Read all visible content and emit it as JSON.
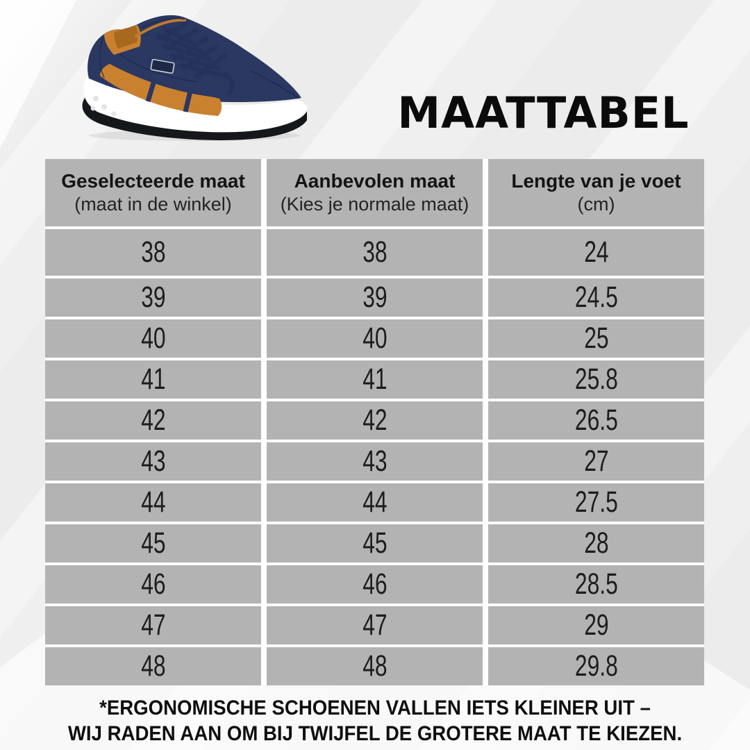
{
  "title": "MAATTABEL",
  "shoe": {
    "navy": "#2a3862",
    "navy_dark": "#1d2948",
    "orange": "#c9812f",
    "orange_dark": "#a8681f",
    "sole": "#ffffff",
    "outsole": "#16171b",
    "lace": "#25335c"
  },
  "table": {
    "headers": [
      {
        "title": "Geselecteerde maat",
        "subtitle": "(maat in de winkel)"
      },
      {
        "title": "Aanbevolen maat",
        "subtitle": "(Kies je normale maat)"
      },
      {
        "title": "Lengte van je voet",
        "subtitle": "(cm)"
      }
    ],
    "rows": [
      [
        "38",
        "38",
        "24"
      ],
      [
        "39",
        "39",
        "24.5"
      ],
      [
        "40",
        "40",
        "25"
      ],
      [
        "41",
        "41",
        "25.8"
      ],
      [
        "42",
        "42",
        "26.5"
      ],
      [
        "43",
        "43",
        "27"
      ],
      [
        "44",
        "44",
        "27.5"
      ],
      [
        "45",
        "45",
        "28"
      ],
      [
        "46",
        "46",
        "28.5"
      ],
      [
        "47",
        "47",
        "29"
      ],
      [
        "48",
        "48",
        "29.8"
      ]
    ]
  },
  "footer": {
    "line1": "*ERGONOMISCHE SCHOENEN VALLEN IETS KLEINER UIT –",
    "line2": "WIJ RADEN AAN OM BIJ TWIJFEL DE GROTERE MAAT TE KIEZEN."
  },
  "colors": {
    "cell_gray": "#b3b3b3",
    "gap_white": "#ffffff",
    "background": "#ececec",
    "text": "#161616"
  },
  "chart_data": {
    "type": "table",
    "title": "MAATTABEL",
    "columns": [
      "Geselecteerde maat (maat in de winkel)",
      "Aanbevolen maat (Kies je normale maat)",
      "Lengte van je voet (cm)"
    ],
    "rows": [
      [
        "38",
        "38",
        "24"
      ],
      [
        "39",
        "39",
        "24.5"
      ],
      [
        "40",
        "40",
        "25"
      ],
      [
        "41",
        "41",
        "25.8"
      ],
      [
        "42",
        "42",
        "26.5"
      ],
      [
        "43",
        "43",
        "27"
      ],
      [
        "44",
        "44",
        "27.5"
      ],
      [
        "45",
        "45",
        "28"
      ],
      [
        "46",
        "46",
        "28.5"
      ],
      [
        "47",
        "47",
        "29"
      ],
      [
        "48",
        "48",
        "29.8"
      ]
    ],
    "footnote": "*ERGONOMISCHE SCHOENEN VALLEN IETS KLEINER UIT – WIJ RADEN AAN OM BIJ TWIJFEL DE GROTERE MAAT TE KIEZEN."
  }
}
